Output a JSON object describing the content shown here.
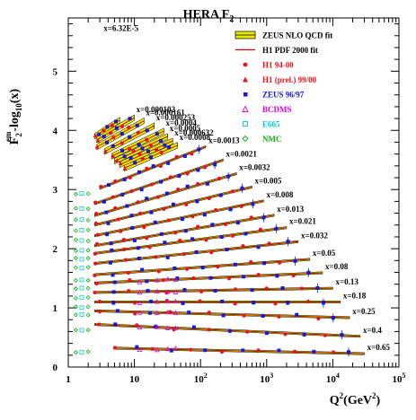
{
  "chart_data": {
    "type": "scatter",
    "title": "HERA F",
    "title_sub": "2",
    "x_scale": "log",
    "xlim": [
      1,
      100000
    ],
    "ylim": [
      0,
      5.9
    ],
    "x_ticks": [
      1,
      10,
      100,
      1000,
      10000,
      100000
    ],
    "x_tick_labels": [
      {
        "base": "1",
        "exp": ""
      },
      {
        "base": "10",
        "exp": ""
      },
      {
        "base": "10",
        "exp": "2"
      },
      {
        "base": "10",
        "exp": "3"
      },
      {
        "base": "10",
        "exp": "4"
      },
      {
        "base": "10",
        "exp": "5"
      }
    ],
    "y_ticks": [
      0,
      1,
      2,
      3,
      4,
      5
    ],
    "y_tick_labels": [
      "0",
      "1",
      "2",
      "3",
      "4",
      "5"
    ],
    "xlabel": {
      "q": "Q",
      "sup": "2",
      "unit": "(GeV",
      "unit_sup": "2",
      "close": ")"
    },
    "ylabel": {
      "f": "F",
      "sup": "em",
      "sub": "2",
      "rest": "-log",
      "sub2": "10",
      "tail": "(x)"
    },
    "legend": [
      {
        "label": "ZEUS NLO QCD fit",
        "kind": "band",
        "color": "#e8e800"
      },
      {
        "label": "H1 PDF 2000 fit",
        "kind": "line",
        "color": "#cc0000"
      },
      {
        "label": "H1 94-00",
        "kind": "circle",
        "color": "#e8141e"
      },
      {
        "label": "H1 (prel.) 99/00",
        "kind": "triangle",
        "color": "#e8141e"
      },
      {
        "label": "ZEUS 96/97",
        "kind": "square",
        "color": "#1818d8"
      },
      {
        "label": "BCDMS",
        "kind": "open-triangle",
        "color": "#e000e0"
      },
      {
        "label": "E665",
        "kind": "open-square",
        "color": "#00c8d8"
      },
      {
        "label": "NMC",
        "kind": "open-diamond",
        "color": "#10b010"
      }
    ],
    "series": [
      {
        "x": "6.32E-5",
        "qmin": 2.5,
        "qmax": 6,
        "ystart": 3.9,
        "slope": 0.72
      },
      {
        "x": "0.000102",
        "qmin": 2.7,
        "qmax": 10,
        "ystart": 3.84,
        "slope": 0.66
      },
      {
        "x": "0.000161",
        "qmin": 2.7,
        "qmax": 14,
        "ystart": 3.72,
        "slope": 0.62
      },
      {
        "x": "0.000253",
        "qmin": 3.5,
        "qmax": 20,
        "ystart": 3.64,
        "slope": 0.58
      },
      {
        "x": "0.0004",
        "qmin": 4.5,
        "qmax": 28,
        "ystart": 3.56,
        "slope": 0.54
      },
      {
        "x": "0.0005",
        "qmin": 5,
        "qmax": 32,
        "ystart": 3.48,
        "slope": 0.52
      },
      {
        "x": "0.000632",
        "qmin": 6,
        "qmax": 38,
        "ystart": 3.42,
        "slope": 0.5
      },
      {
        "x": "0.0008",
        "qmin": 7,
        "qmax": 45,
        "ystart": 3.36,
        "slope": 0.48
      },
      {
        "x": "0.0013",
        "qmin": 3,
        "qmax": 120,
        "ystart": 3.02,
        "slope": 0.44
      },
      {
        "x": "0.0021",
        "qmin": 2.5,
        "qmax": 220,
        "ystart": 2.76,
        "slope": 0.38
      },
      {
        "x": "0.0032",
        "qmin": 2.5,
        "qmax": 350,
        "ystart": 2.56,
        "slope": 0.33
      },
      {
        "x": "0.005",
        "qmin": 2.5,
        "qmax": 600,
        "ystart": 2.4,
        "slope": 0.27
      },
      {
        "x": "0.008",
        "qmin": 2.5,
        "qmax": 900,
        "ystart": 2.22,
        "slope": 0.23
      },
      {
        "x": "0.013",
        "qmin": 2.5,
        "qmax": 1300,
        "ystart": 2.05,
        "slope": 0.19
      },
      {
        "x": "0.021",
        "qmin": 2.5,
        "qmax": 2000,
        "ystart": 1.92,
        "slope": 0.15
      },
      {
        "x": "0.032",
        "qmin": 2.5,
        "qmax": 3000,
        "ystart": 1.75,
        "slope": 0.12
      },
      {
        "x": "0.05",
        "qmin": 2.5,
        "qmax": 4500,
        "ystart": 1.56,
        "slope": 0.08
      },
      {
        "x": "0.08",
        "qmin": 2.5,
        "qmax": 7000,
        "ystart": 1.42,
        "slope": 0.05
      },
      {
        "x": "0.13",
        "qmin": 2.5,
        "qmax": 10000,
        "ystart": 1.26,
        "slope": 0.02
      },
      {
        "x": "0.18",
        "qmin": 2.5,
        "qmax": 13000,
        "ystart": 1.1,
        "slope": 0.0
      },
      {
        "x": "0.25",
        "qmin": 2.5,
        "qmax": 18000,
        "ystart": 0.95,
        "slope": -0.03
      },
      {
        "x": "0.4",
        "qmin": 2.5,
        "qmax": 26000,
        "ystart": 0.72,
        "slope": -0.05
      },
      {
        "x": "0.65",
        "qmin": 5,
        "qmax": 30000,
        "ystart": 0.32,
        "slope": -0.025
      }
    ]
  }
}
